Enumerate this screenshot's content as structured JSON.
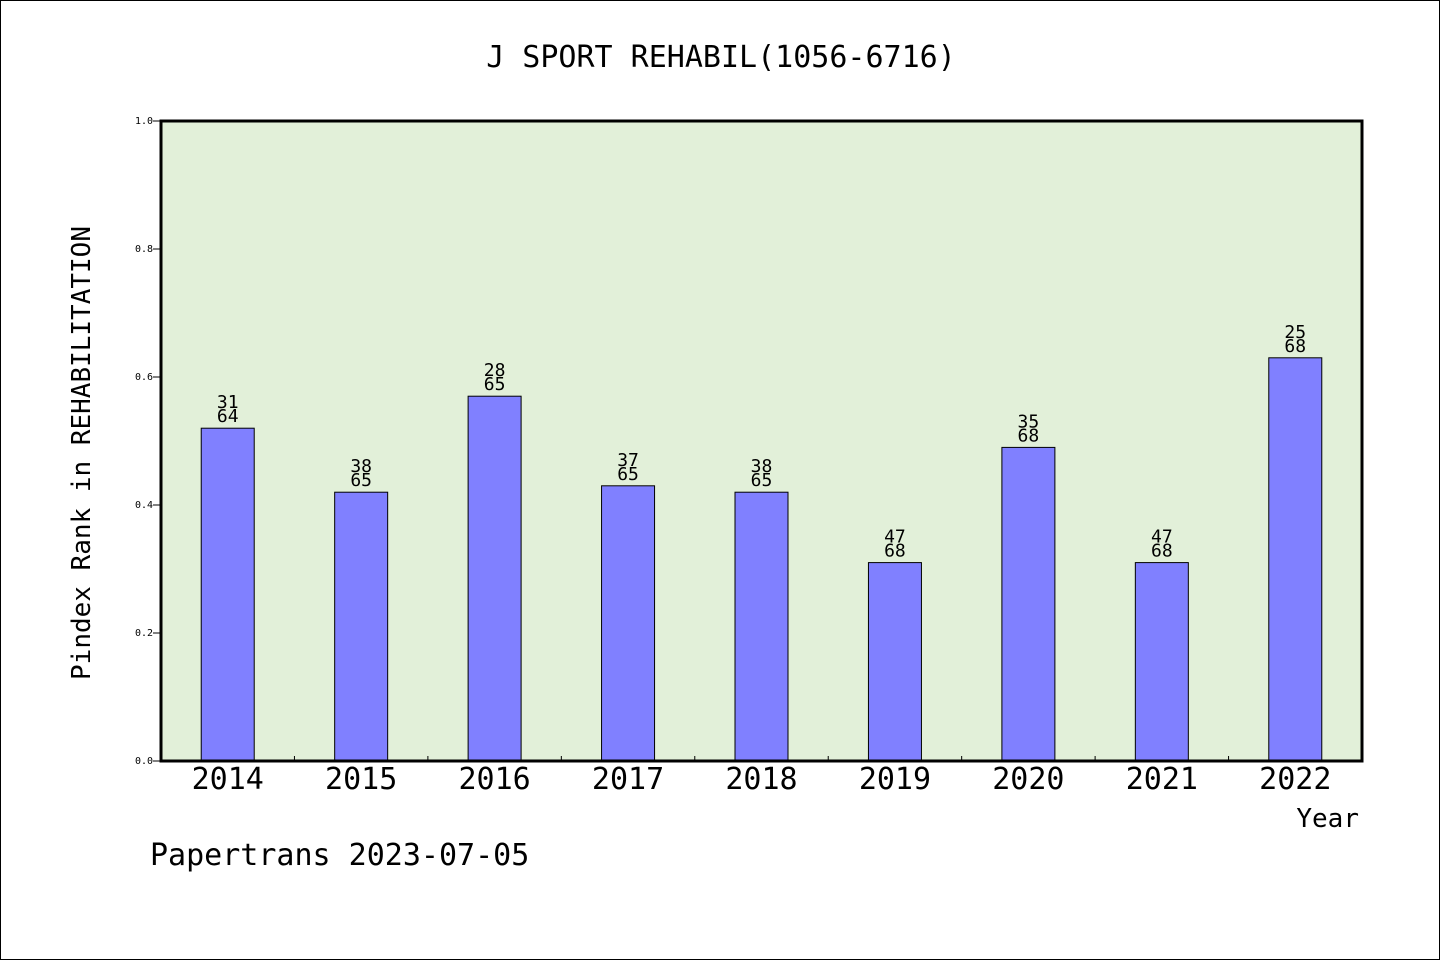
{
  "chart_data": {
    "type": "bar",
    "title": "J SPORT REHABIL(1056-6716)",
    "xlabel": "Year",
    "ylabel": "Pindex Rank in REHABILITATION",
    "ylim": [
      0,
      1.0
    ],
    "yticks": [
      "0.0",
      "0.2",
      "0.4",
      "0.6",
      "0.8",
      "1.0"
    ],
    "ytick_values": [
      0,
      0.2,
      0.4,
      0.6,
      0.8,
      1.0
    ],
    "categories": [
      "2014",
      "2015",
      "2016",
      "2017",
      "2018",
      "2019",
      "2020",
      "2021",
      "2022"
    ],
    "values": [
      0.52,
      0.42,
      0.57,
      0.43,
      0.42,
      0.31,
      0.49,
      0.31,
      0.63
    ],
    "label_top": [
      "31",
      "38",
      "28",
      "37",
      "38",
      "47",
      "35",
      "47",
      "25"
    ],
    "label_bottom": [
      "64",
      "65",
      "65",
      "65",
      "65",
      "68",
      "68",
      "68",
      "68"
    ],
    "grid": false,
    "colors": {
      "plot_background": "#e2f0d9",
      "bar_fill": "#8080ff",
      "bar_stroke": "#000000",
      "axis": "#000000"
    }
  },
  "footer": {
    "credit": "Papertrans 2023-07-05"
  }
}
